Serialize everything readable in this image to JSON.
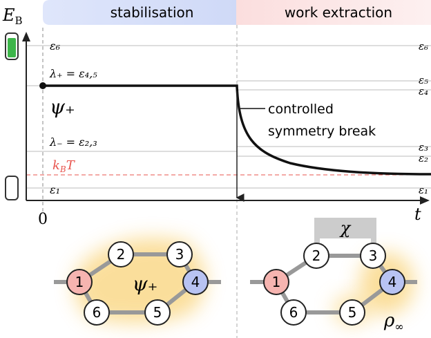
{
  "header": {
    "left": "stabilisation",
    "right": "work extraction"
  },
  "plot": {
    "y_axis": {
      "main": "E",
      "sub": "B"
    },
    "x_axis": "t",
    "origin": "0",
    "left_labels": {
      "e6": "ε₆",
      "lambda_plus": "λ₊ = ε₄,₅",
      "psi_plus": "ψ₊",
      "lambda_minus": "λ₋ = ε₂,₃",
      "kbt": {
        "k": "k",
        "sub": "B",
        "T": "T"
      },
      "e1": "ε₁"
    },
    "right_labels": [
      "ε₆",
      "ε₅",
      "ε₄",
      "ε₃",
      "ε₂",
      "ε₁"
    ],
    "annotation": [
      "controlled",
      "symmetry break"
    ]
  },
  "network_left": {
    "nodes": [
      "1",
      "2",
      "3",
      "4",
      "5",
      "6"
    ],
    "label": "ψ₊"
  },
  "network_right": {
    "nodes": [
      "1",
      "2",
      "3",
      "4",
      "5",
      "6"
    ],
    "bridge": "χ",
    "label": {
      "main": "ρ",
      "sub": "∞"
    }
  }
}
